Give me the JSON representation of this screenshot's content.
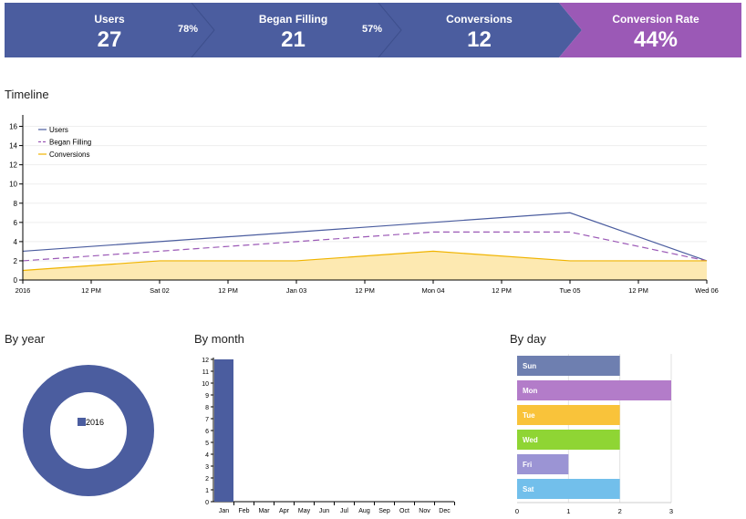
{
  "funnel": {
    "stages": [
      {
        "label": "Users",
        "value": "27"
      },
      {
        "label": "Began Filling",
        "value": "21"
      },
      {
        "label": "Conversions",
        "value": "12"
      },
      {
        "label": "Conversion Rate",
        "value": "44%"
      }
    ],
    "percentages": [
      "78%",
      "57%"
    ],
    "colors": {
      "stage": "#4b5d9f",
      "rate": "#9b59b6"
    }
  },
  "timeline": {
    "title": "Timeline",
    "legend": [
      "Users",
      "Began Filling",
      "Conversions"
    ]
  },
  "by_year": {
    "title": "By year",
    "legend_label": "2016"
  },
  "by_month": {
    "title": "By month"
  },
  "by_day": {
    "title": "By day"
  },
  "chart_data": [
    {
      "type": "line",
      "title": "Timeline",
      "x": [
        "2016",
        "12 PM",
        "Sat 02",
        "12 PM",
        "Jan 03",
        "12 PM",
        "Mon 04",
        "12 PM",
        "Tue 05",
        "12 PM",
        "Wed 06"
      ],
      "series": [
        {
          "name": "Users",
          "color": "#4b5d9f",
          "style": "solid",
          "points": [
            [
              0,
              3
            ],
            [
              2,
              4
            ],
            [
              4,
              5
            ],
            [
              6,
              6
            ],
            [
              8,
              7
            ],
            [
              10,
              2
            ]
          ]
        },
        {
          "name": "Began Filling",
          "color": "#9b59b6",
          "style": "dashed",
          "points": [
            [
              0,
              2
            ],
            [
              2,
              3
            ],
            [
              4,
              4
            ],
            [
              6,
              5
            ],
            [
              8,
              5
            ],
            [
              10,
              2
            ]
          ]
        },
        {
          "name": "Conversions",
          "color": "#f0b400",
          "style": "area",
          "fill": "#fde9b1",
          "points": [
            [
              0,
              1
            ],
            [
              2,
              2
            ],
            [
              4,
              2
            ],
            [
              6,
              3
            ],
            [
              8,
              2
            ],
            [
              10,
              2
            ]
          ]
        }
      ],
      "ylim": [
        0,
        17
      ],
      "yticks": [
        0,
        2,
        4,
        6,
        8,
        10,
        12,
        14,
        16
      ],
      "grid": true,
      "legend": "top-left"
    },
    {
      "type": "pie",
      "title": "By year",
      "categories": [
        "2016"
      ],
      "values": [
        12
      ],
      "colors": [
        "#4b5d9f"
      ]
    },
    {
      "type": "bar",
      "title": "By month",
      "categories": [
        "Jan",
        "Feb",
        "Mar",
        "Apr",
        "May",
        "Jun",
        "Jul",
        "Aug",
        "Sep",
        "Oct",
        "Nov",
        "Dec"
      ],
      "values": [
        12,
        0,
        0,
        0,
        0,
        0,
        0,
        0,
        0,
        0,
        0,
        0
      ],
      "ylim": [
        0,
        12
      ],
      "yticks": [
        0,
        1,
        2,
        3,
        4,
        5,
        6,
        7,
        8,
        9,
        10,
        11,
        12
      ],
      "color": "#4b5d9f"
    },
    {
      "type": "bar",
      "title": "By day",
      "orientation": "horizontal",
      "categories": [
        "Sun",
        "Mon",
        "Tue",
        "Wed",
        "Fri",
        "Sat"
      ],
      "values": [
        2,
        3,
        2,
        2,
        1,
        2
      ],
      "colors": [
        "#6e7fb0",
        "#b37cc9",
        "#f9c33a",
        "#8fd534",
        "#9b94d4",
        "#72bfeb"
      ],
      "xlim": [
        0,
        3
      ],
      "xticks": [
        0,
        1,
        2,
        3
      ],
      "grid": true
    }
  ]
}
